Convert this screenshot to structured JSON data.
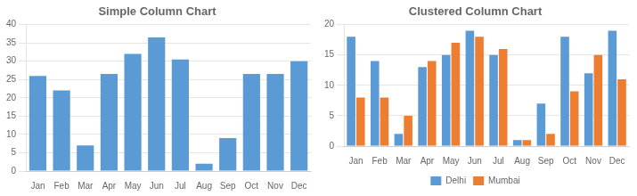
{
  "chart_data": [
    {
      "type": "bar",
      "title": "Simple Column Chart",
      "categories": [
        "Jan",
        "Feb",
        "Mar",
        "Apr",
        "May",
        "Jun",
        "Jul",
        "Aug",
        "Sep",
        "Oct",
        "Nov",
        "Dec"
      ],
      "values": [
        26,
        22,
        7,
        26.5,
        32,
        36.5,
        30.5,
        2,
        9,
        26.5,
        26.5,
        30
      ],
      "color": "#5B9BD5",
      "ylim": [
        0,
        40
      ],
      "yticks": [
        0,
        5,
        10,
        15,
        20,
        25,
        30,
        35,
        40
      ],
      "grid": true
    },
    {
      "type": "bar",
      "title": "Clustered Column Chart",
      "categories": [
        "Jan",
        "Feb",
        "Mar",
        "Apr",
        "May",
        "Jun",
        "Jul",
        "Aug",
        "Sep",
        "Oct",
        "Nov",
        "Dec"
      ],
      "series": [
        {
          "name": "Delhi",
          "color": "#5B9BD5",
          "values": [
            18,
            14,
            2,
            13,
            15,
            19,
            15,
            1,
            7,
            18,
            12,
            19
          ]
        },
        {
          "name": "Mumbai",
          "color": "#ED7D31",
          "values": [
            8,
            8,
            5,
            14,
            17,
            18,
            16,
            1,
            2,
            9,
            15,
            11
          ]
        }
      ],
      "ylim": [
        0,
        20
      ],
      "yticks": [
        0,
        5,
        10,
        15,
        20
      ],
      "grid": true,
      "legend": "bottom"
    }
  ]
}
